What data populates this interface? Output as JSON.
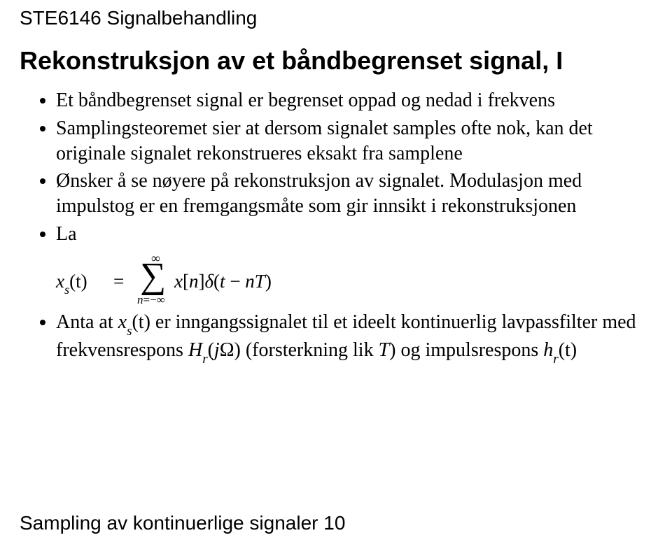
{
  "header": "STE6146 Signalbehandling",
  "title": "Rekonstruksjon av et båndbegrenset signal, I",
  "bullets": {
    "b1": "Et båndbegrenset signal er begrenset oppad og nedad i frekvens",
    "b2": "Samplingsteoremet sier at dersom signalet samples ofte nok, kan det originale signalet rekonstrueres eksakt fra samplene",
    "b3": "Ønsker å se nøyere på rekonstruksjon av signalet. Modulasjon med impulstog er en fremgangsmåte som gir innsikt i rekonstruksjonen",
    "b4": "La",
    "b5_pre": "Anta at ",
    "b5_xs": "x",
    "b5_s": "s",
    "b5_t": "(t)",
    "b5_mid": " er inngangssignalet til et ideelt kontinuerlig lavpassfilter med frekvensrespons ",
    "b5_H": "H",
    "b5_r1": "r",
    "b5_jO": "(jΩ)",
    "b5_mid2": " (forsterkning lik ",
    "b5_T": "T",
    "b5_mid3": ") og impulsrespons ",
    "b5_h": "h",
    "b5_r2": "r",
    "b5_t2": "(t)"
  },
  "formula": {
    "lhs_x": "x",
    "lhs_s": "s",
    "lhs_t": "(t)",
    "eq": "=",
    "sigma": "∑",
    "top": "∞",
    "bot_n": "n",
    "bot_eq": "=−∞",
    "rhs_x": "x",
    "rhs_br_open": "[",
    "rhs_n": "n",
    "rhs_br_close": "]",
    "rhs_delta": "δ",
    "rhs_paren_open": "(",
    "rhs_t": "t",
    "rhs_minus": " − ",
    "rhs_nT": "nT",
    "rhs_paren_close": ")"
  },
  "footer": "Sampling av kontinuerlige signaler 10",
  "colors": {
    "background": "#ffffff",
    "text": "#000000"
  },
  "fonts": {
    "header_family": "Arial",
    "body_family": "Times New Roman",
    "header_size_pt": 21,
    "title_size_pt": 27,
    "bullet_size_pt": 21,
    "formula_size_pt": 20
  }
}
